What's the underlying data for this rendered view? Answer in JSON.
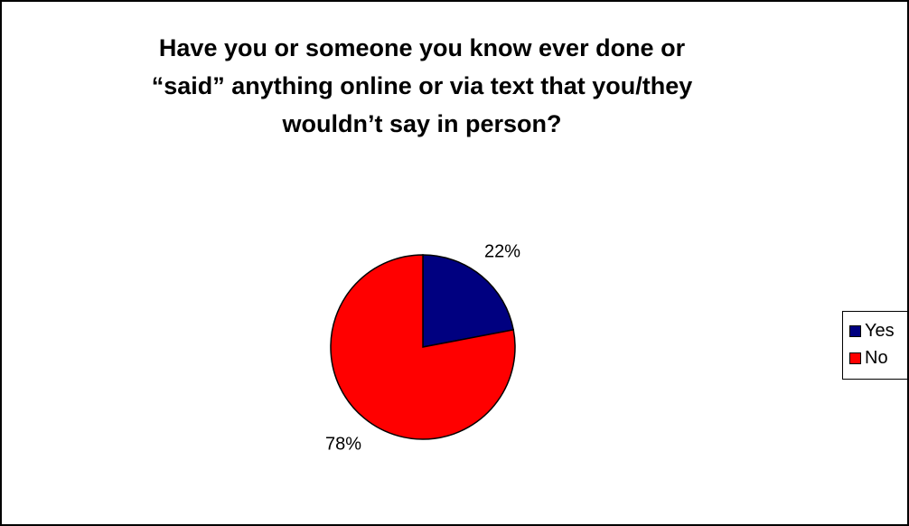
{
  "chart_data": {
    "type": "pie",
    "title_lines": [
      "Have you or someone you know ever done or",
      "“said” anything online or via text that you/they",
      "wouldn’t say in person?"
    ],
    "categories": [
      "Yes",
      "No"
    ],
    "values": [
      22,
      78
    ],
    "labels": [
      "22%",
      "78%"
    ],
    "colors": [
      "#000080",
      "#ff0000"
    ],
    "start_angle_deg": 0,
    "direction": "clockwise",
    "legend": {
      "position": "right",
      "entries": [
        "Yes",
        "No"
      ]
    }
  }
}
